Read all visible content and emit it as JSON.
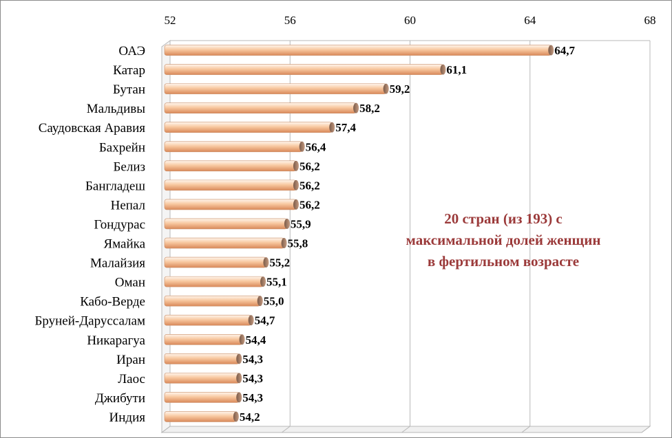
{
  "chart_data": {
    "type": "bar",
    "orientation": "horizontal",
    "categories": [
      "ОАЭ",
      "Катар",
      "Бутан",
      "Мальдивы",
      "Саудовская Аравия",
      "Бахрейн",
      "Белиз",
      "Бангладеш",
      "Непал",
      "Гондурас",
      "Ямайка",
      "Малайзия",
      "Оман",
      "Кабо-Верде",
      "Бруней-Даруссалам",
      "Никарагуа",
      "Иран",
      "Лаос",
      "Джибути",
      "Индия"
    ],
    "values": [
      64.7,
      61.1,
      59.2,
      58.2,
      57.4,
      56.4,
      56.2,
      56.2,
      56.2,
      55.9,
      55.8,
      55.2,
      55.1,
      55.0,
      54.7,
      54.4,
      54.3,
      54.3,
      54.3,
      54.2
    ],
    "value_labels": [
      "64,7",
      "61,1",
      "59,2",
      "58,2",
      "57,4",
      "56,4",
      "56,2",
      "56,2",
      "56,2",
      "55,9",
      "55,8",
      "55,2",
      "55,1",
      "55,0",
      "54,7",
      "54,4",
      "54,3",
      "54,3",
      "54,3",
      "54,2"
    ],
    "xlim": [
      52,
      68
    ],
    "xticks": [
      "52",
      "56",
      "60",
      "64",
      "68"
    ],
    "x_axis_position": "top",
    "grid": true,
    "bar_color": "#f0a878",
    "grid_color": "#b8b8b8",
    "annotation": "20 стран (из 193) с максимальной долей женщин в фертильном возрасте"
  }
}
